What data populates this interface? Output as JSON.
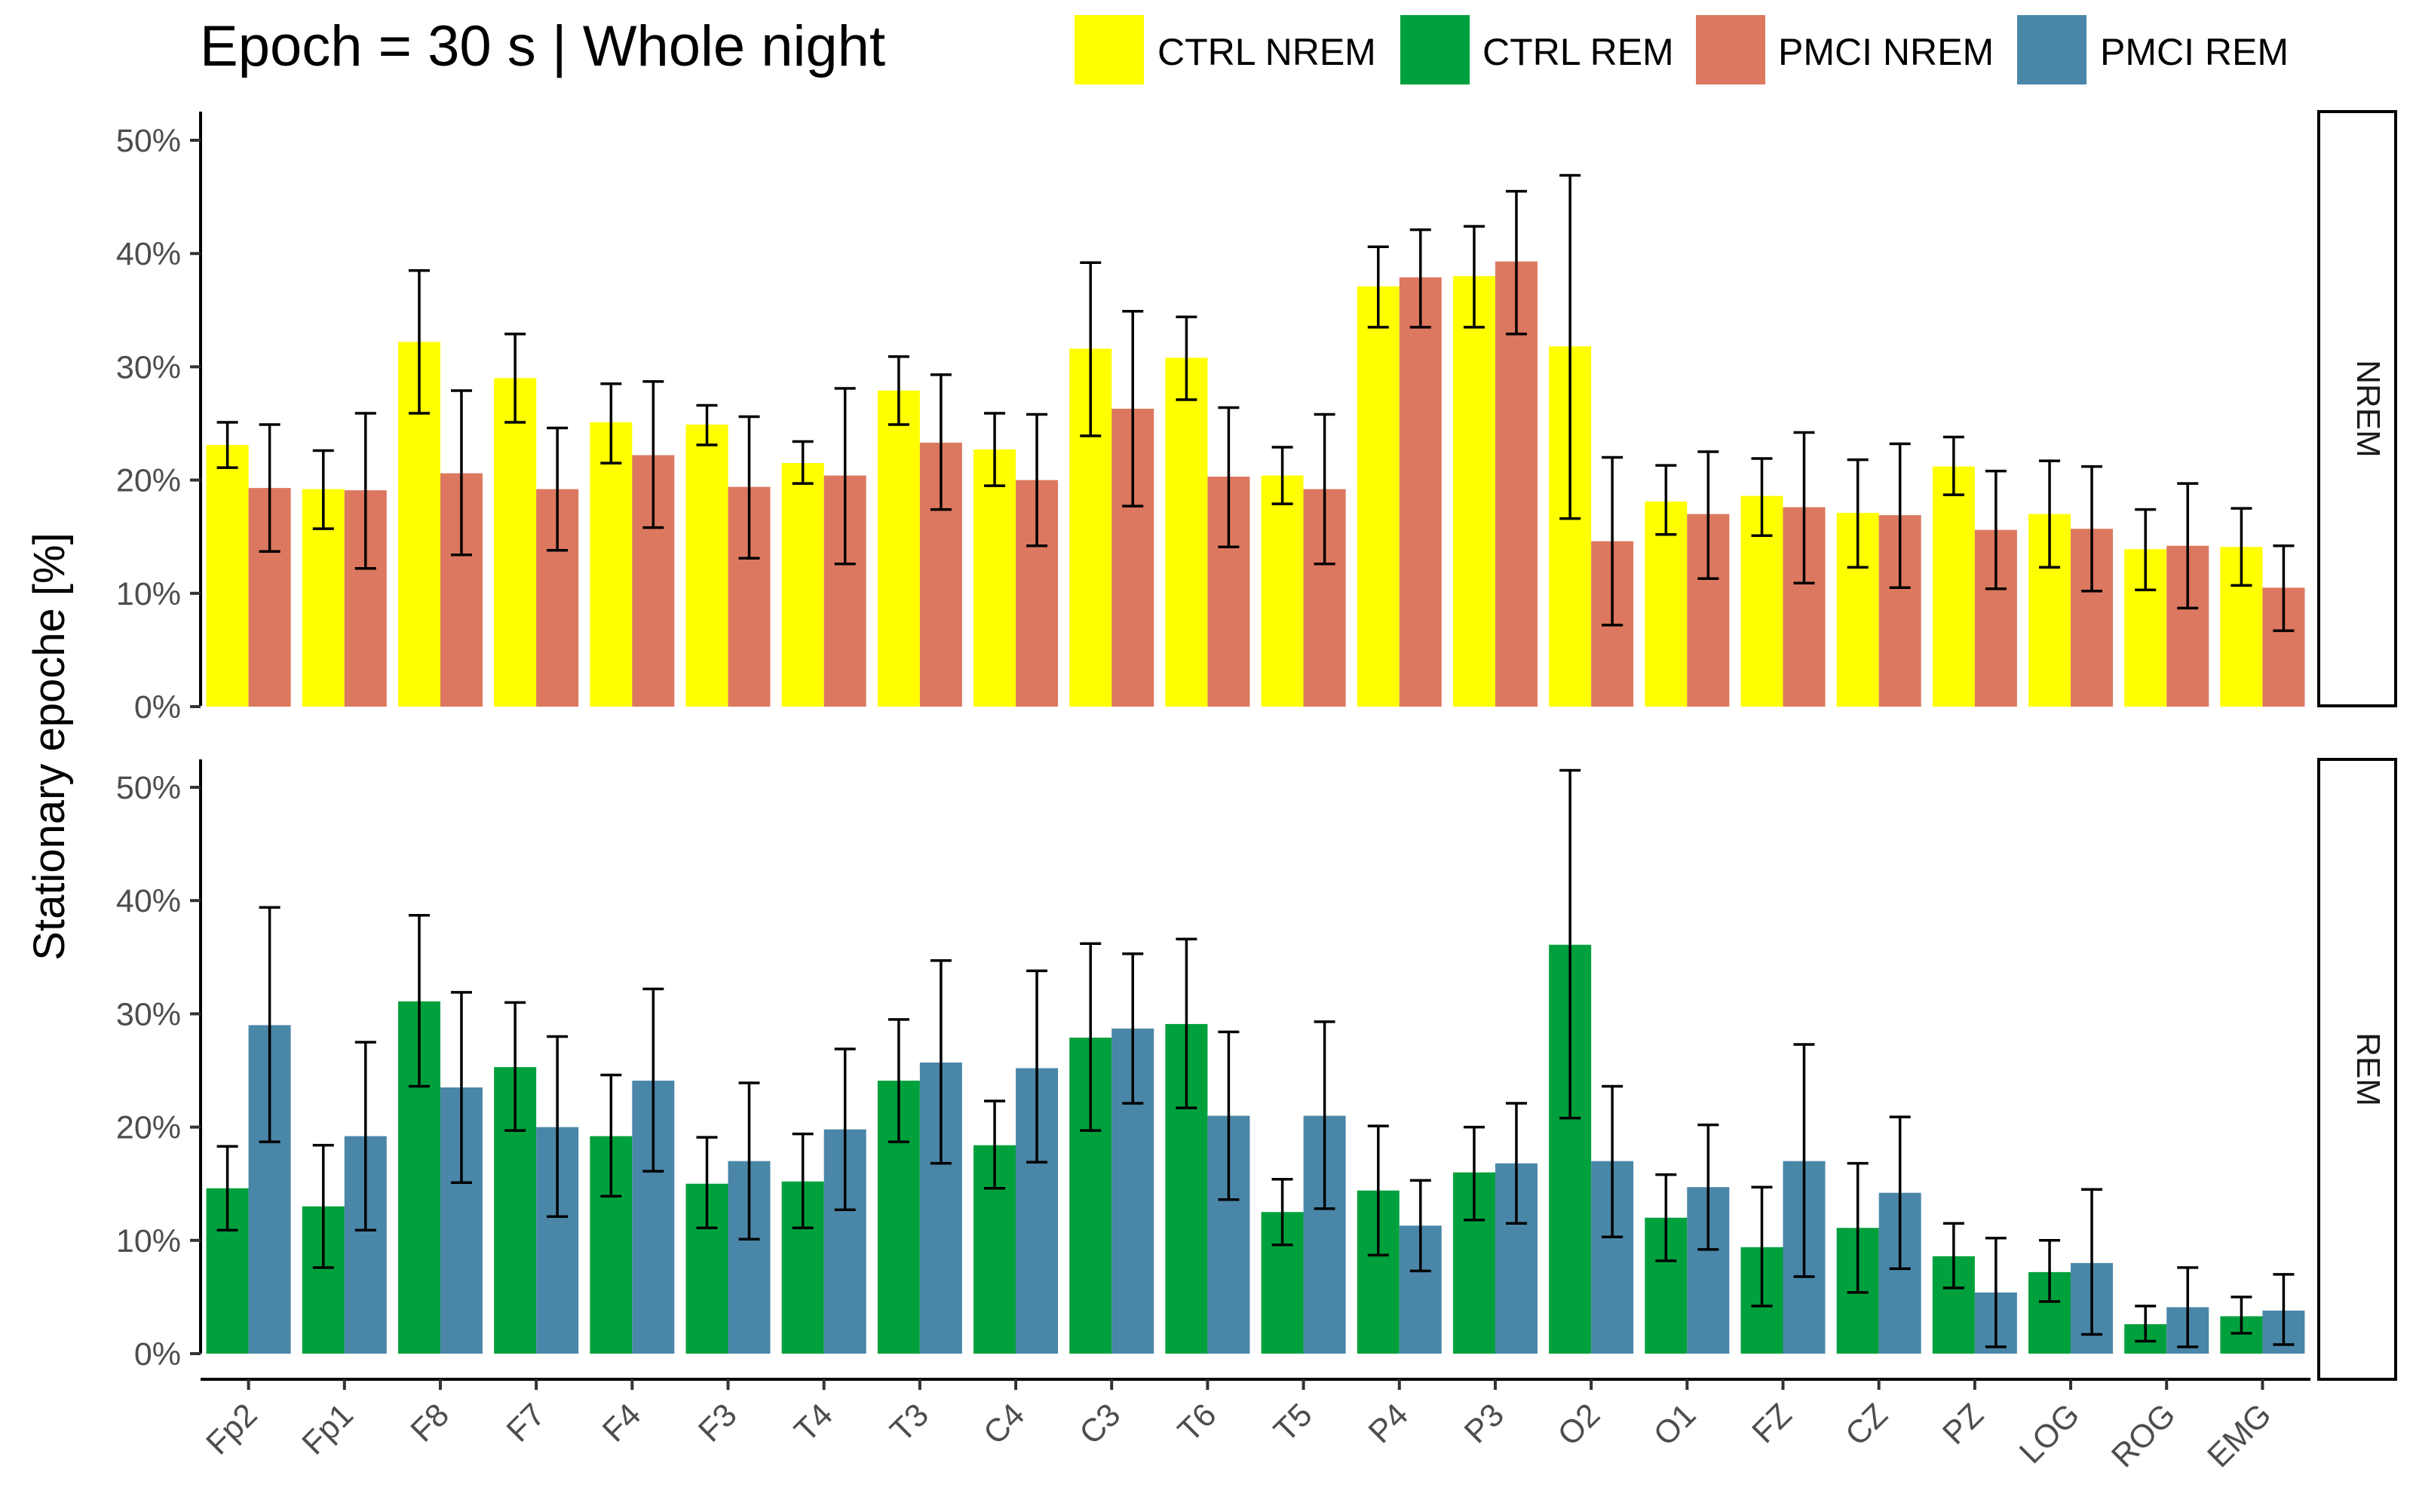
{
  "chart_data": {
    "type": "bar",
    "title": "Epoch = 30 s | Whole night",
    "ylabel": "Stationary epoche [%]",
    "xlabel": "",
    "ylim": [
      0,
      52
    ],
    "yticks": [
      0,
      10,
      20,
      30,
      40,
      50
    ],
    "ytick_labels": [
      "0%",
      "10%",
      "20%",
      "30%",
      "40%",
      "50%"
    ],
    "grid": false,
    "legend_position": "top",
    "categories": [
      "Fp2",
      "Fp1",
      "F8",
      "F7",
      "F4",
      "F3",
      "T4",
      "T3",
      "C4",
      "C3",
      "T6",
      "T5",
      "P4",
      "P3",
      "O2",
      "O1",
      "FZ",
      "CZ",
      "PZ",
      "LOG",
      "ROG",
      "EMG"
    ],
    "legend": [
      {
        "name": "CTRL NREM",
        "color": "#FFFF00"
      },
      {
        "name": "CTRL REM",
        "color": "#00A03C"
      },
      {
        "name": "PMCI NREM",
        "color": "#DC785F"
      },
      {
        "name": "PMCI REM",
        "color": "#4A86A8"
      }
    ],
    "panels": [
      {
        "strip": "NREM",
        "series": [
          {
            "name": "CTRL NREM",
            "color": "#FFFF00",
            "values": [
              23.1,
              19.2,
              32.2,
              29.0,
              25.1,
              24.9,
              21.5,
              27.9,
              22.7,
              31.6,
              30.8,
              20.4,
              37.1,
              38.0,
              31.8,
              18.1,
              18.6,
              17.1,
              21.2,
              17.0,
              13.9,
              14.1
            ],
            "err_low": [
              21.1,
              15.7,
              25.9,
              25.1,
              21.5,
              23.1,
              19.7,
              24.9,
              19.5,
              23.9,
              27.1,
              17.9,
              33.5,
              33.5,
              16.6,
              15.2,
              15.1,
              12.3,
              18.7,
              12.3,
              10.3,
              10.7
            ],
            "err_high": [
              25.1,
              22.6,
              38.5,
              32.9,
              28.5,
              26.6,
              23.4,
              30.9,
              25.9,
              39.2,
              34.4,
              22.9,
              40.6,
              42.4,
              46.9,
              21.3,
              21.9,
              21.8,
              23.8,
              21.7,
              17.4,
              17.5
            ]
          },
          {
            "name": "PMCI NREM",
            "color": "#DC785F",
            "values": [
              19.3,
              19.1,
              20.6,
              19.2,
              22.2,
              19.4,
              20.4,
              23.3,
              20.0,
              26.3,
              20.3,
              19.2,
              37.9,
              39.3,
              14.6,
              17.0,
              17.6,
              16.9,
              15.6,
              15.7,
              14.2,
              10.5
            ],
            "err_low": [
              13.7,
              12.2,
              13.4,
              13.8,
              15.8,
              13.1,
              12.6,
              17.4,
              14.2,
              17.7,
              14.1,
              12.6,
              33.5,
              32.9,
              7.2,
              11.3,
              10.9,
              10.5,
              10.4,
              10.2,
              8.7,
              6.7
            ],
            "err_high": [
              24.9,
              25.9,
              27.9,
              24.6,
              28.7,
              25.6,
              28.1,
              29.3,
              25.8,
              34.9,
              26.4,
              25.8,
              42.1,
              45.5,
              22.0,
              22.5,
              24.2,
              23.2,
              20.8,
              21.2,
              19.7,
              14.2
            ]
          }
        ]
      },
      {
        "strip": "REM",
        "series": [
          {
            "name": "CTRL REM",
            "color": "#00A03C",
            "values": [
              14.6,
              13.0,
              31.1,
              25.3,
              19.2,
              15.0,
              15.2,
              24.1,
              18.4,
              27.9,
              29.1,
              12.5,
              14.4,
              16.0,
              36.1,
              12.0,
              9.4,
              11.1,
              8.6,
              7.2,
              2.6,
              3.3
            ],
            "err_low": [
              10.9,
              7.6,
              23.6,
              19.7,
              13.9,
              11.1,
              11.1,
              18.7,
              14.6,
              19.7,
              21.7,
              9.6,
              8.7,
              11.8,
              20.8,
              8.2,
              4.2,
              5.4,
              5.8,
              4.6,
              1.1,
              1.8
            ],
            "err_high": [
              18.3,
              18.4,
              38.7,
              31.0,
              24.6,
              19.1,
              19.4,
              29.5,
              22.3,
              36.2,
              36.6,
              15.4,
              20.1,
              20.0,
              51.5,
              15.8,
              14.7,
              16.8,
              11.5,
              10.0,
              4.2,
              5.0
            ]
          },
          {
            "name": "PMCI REM",
            "color": "#4A86A8",
            "values": [
              29.0,
              19.2,
              23.5,
              20.0,
              24.1,
              17.0,
              19.8,
              25.7,
              25.2,
              28.7,
              21.0,
              21.0,
              11.3,
              16.8,
              17.0,
              14.7,
              17.0,
              14.2,
              5.4,
              8.0,
              4.1,
              3.8
            ],
            "err_low": [
              18.7,
              10.9,
              15.1,
              12.1,
              16.1,
              10.1,
              12.7,
              16.8,
              16.9,
              22.1,
              13.6,
              12.8,
              7.3,
              11.5,
              10.3,
              9.2,
              6.8,
              7.5,
              0.6,
              1.7,
              0.6,
              0.8
            ],
            "err_high": [
              39.4,
              27.5,
              31.9,
              28.0,
              32.2,
              23.9,
              26.9,
              34.7,
              33.8,
              35.3,
              28.4,
              29.3,
              15.3,
              22.1,
              23.6,
              20.2,
              27.3,
              20.9,
              10.2,
              14.5,
              7.6,
              7.0
            ]
          }
        ]
      }
    ]
  }
}
